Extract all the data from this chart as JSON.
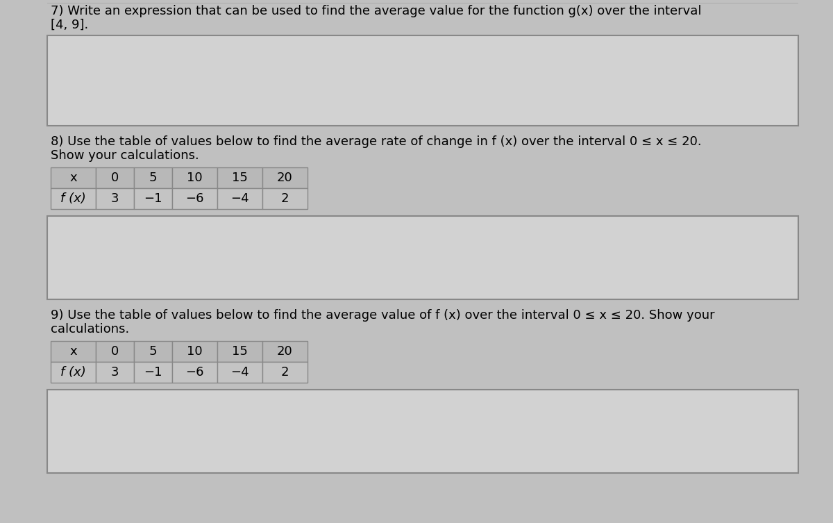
{
  "bg_color": "#c8c8c8",
  "outer_bg": "#c0c0c0",
  "answer_box_color": "#d4d4d4",
  "table_header_bg": "#b8b8b8",
  "table_cell_bg": "#c4c4c4",
  "border_color": "#999999",
  "text_color": "#000000",
  "q7_text_line1": "7) Write an expression that can be used to find the average value for the function g(x) over the interval",
  "q7_text_line2": "[4, 9].",
  "q8_text_line1": "8) Use the table of values below to find the average rate of change in f (x) over the interval 0 ≤ x ≤ 20.",
  "q8_text_line2": "Show your calculations.",
  "q9_text_line1": "9) Use the table of values below to find the average value of f (x) over the interval 0 ≤ x ≤ 20. Show your",
  "q9_text_line2": "calculations.",
  "x_values": [
    "x",
    "0",
    "5",
    "10",
    "15",
    "20"
  ],
  "fx_label": "f (x)",
  "q8_fx_values": [
    "3",
    "−1",
    "−6",
    "−4",
    "2"
  ],
  "q9_fx_values": [
    "3",
    "−1",
    "−6",
    "−4",
    "2"
  ],
  "font_size_text": 13,
  "font_size_table": 13
}
